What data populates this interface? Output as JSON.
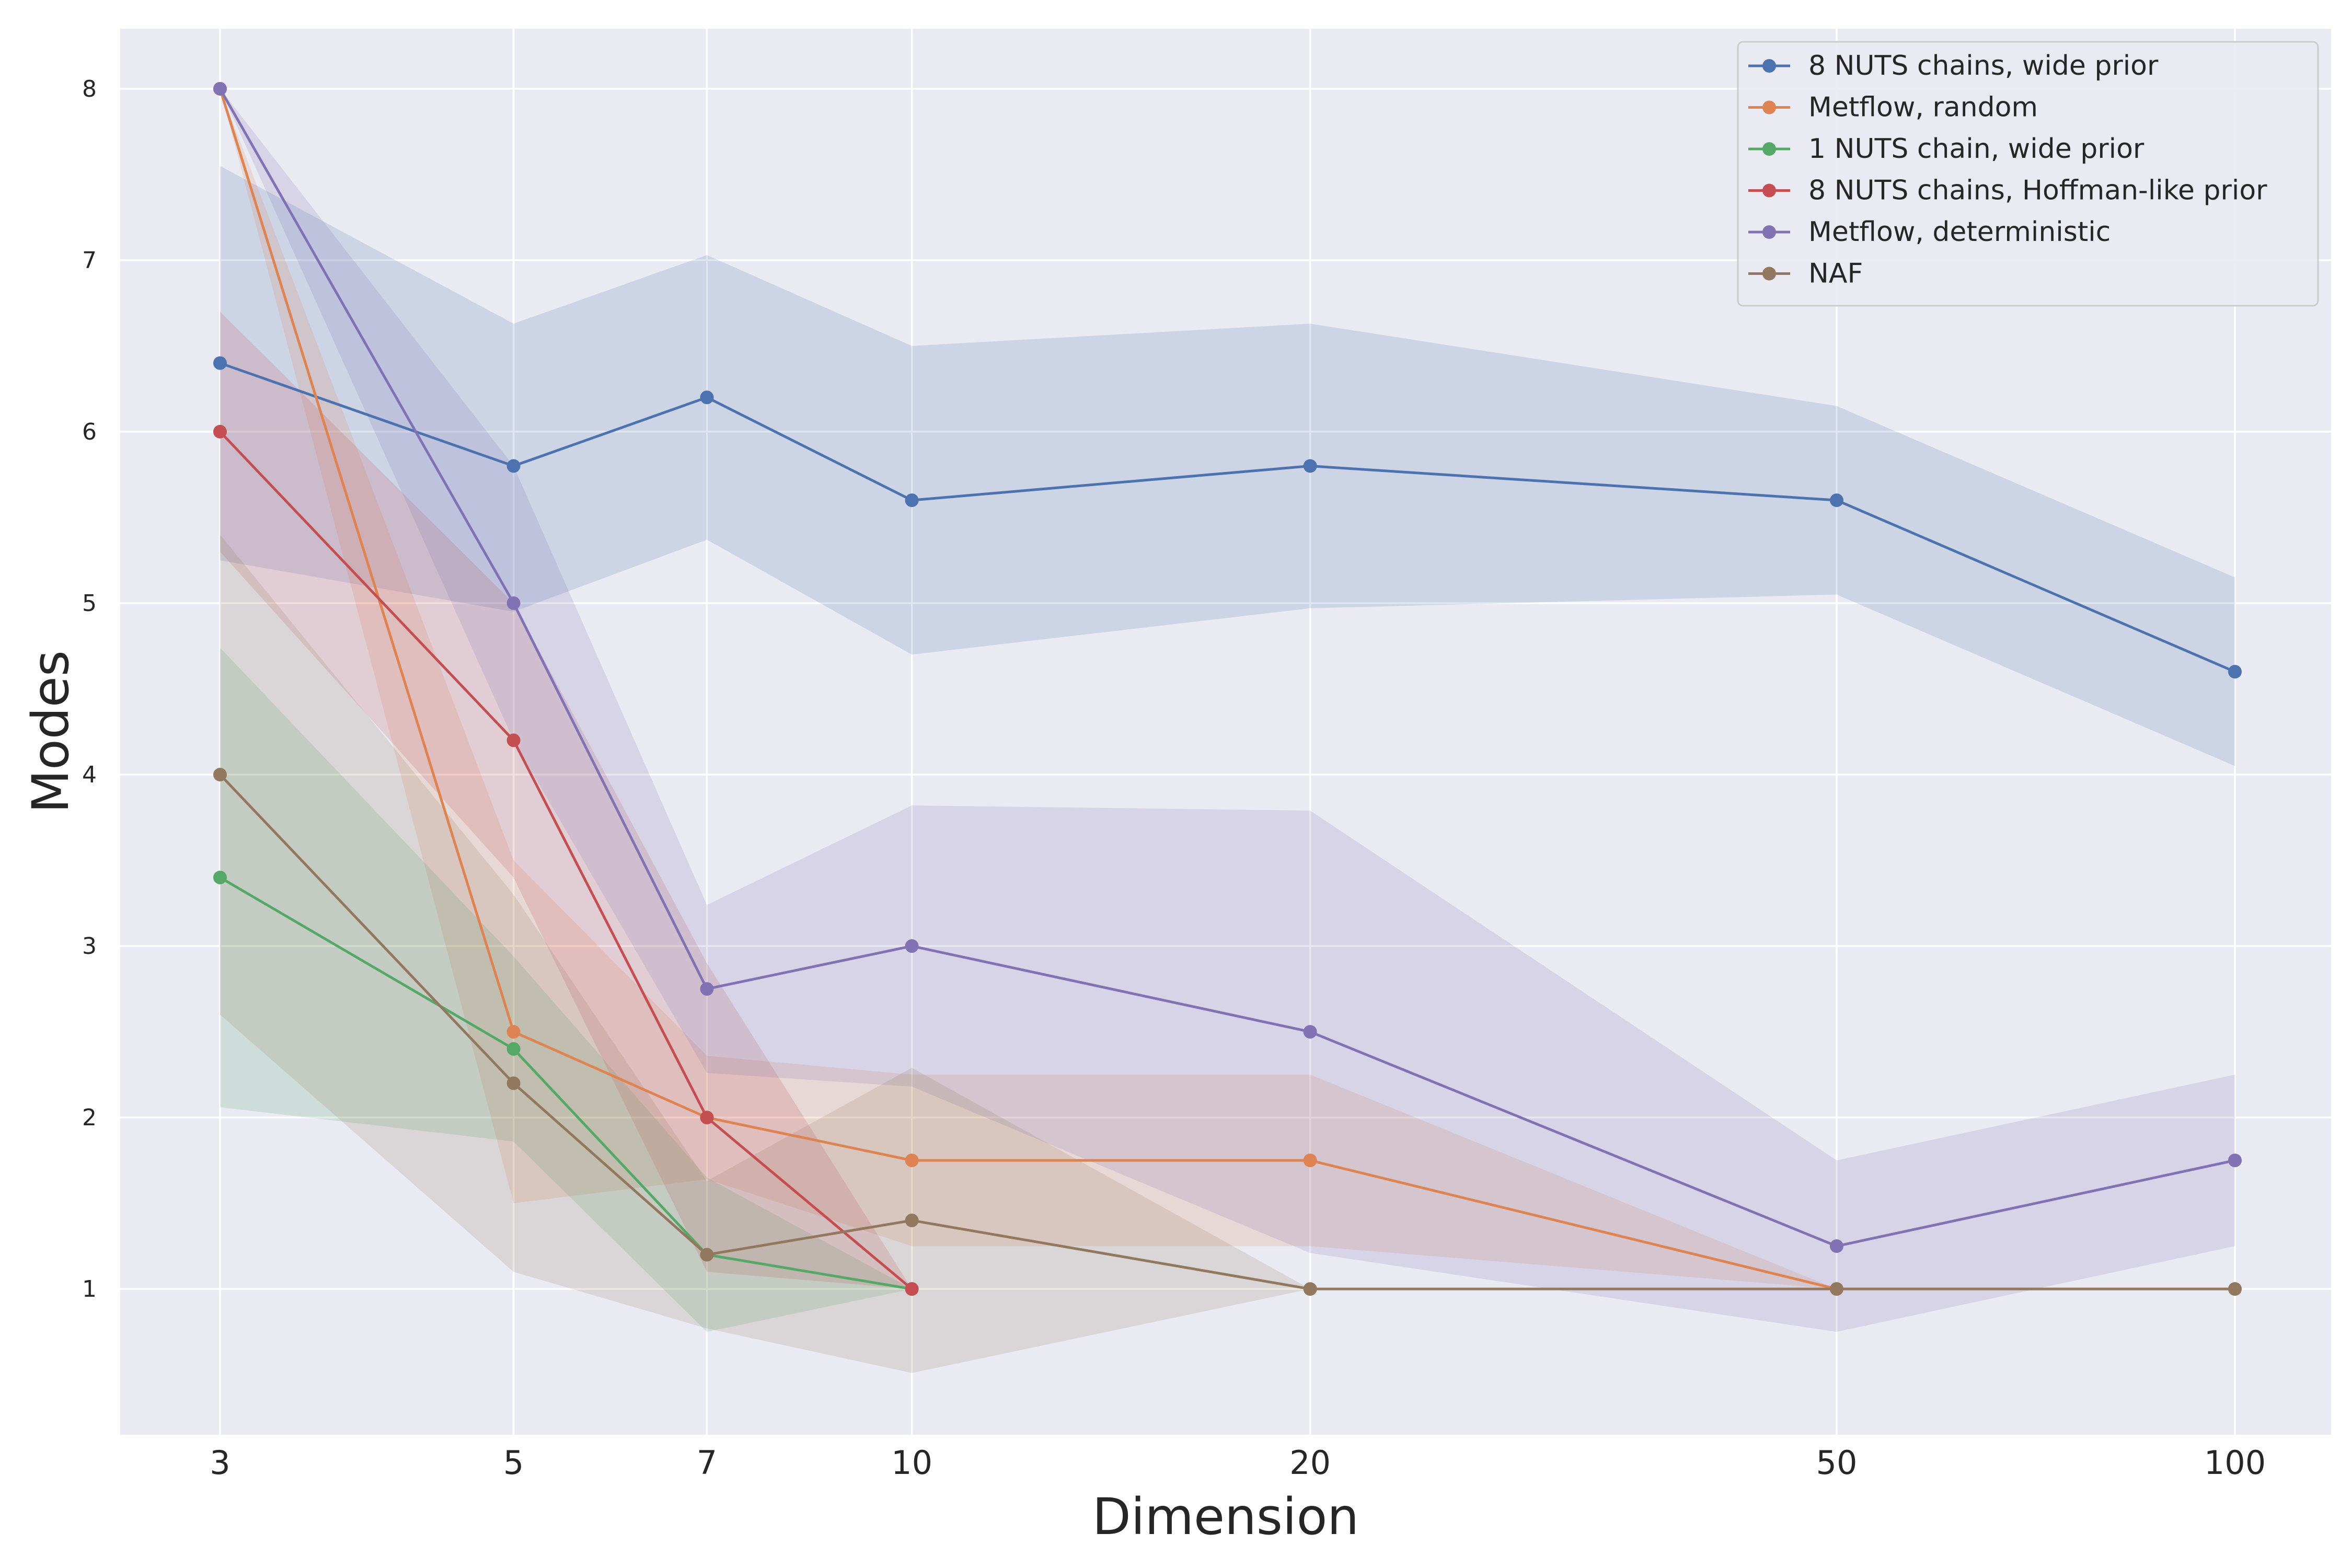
{
  "chart_data": {
    "type": "line",
    "xlabel": "Dimension",
    "ylabel": "Modes",
    "x": [
      3,
      5,
      7,
      10,
      20,
      50,
      100
    ],
    "x_scale": "log",
    "x_ticks": [
      3,
      5,
      7,
      10,
      20,
      50,
      100
    ],
    "y_ticks": [
      1,
      2,
      3,
      4,
      5,
      6,
      7,
      8
    ],
    "ylim": [
      0.15,
      8.35
    ],
    "grid": true,
    "legend_position": "top-right",
    "series": [
      {
        "name": "8 NUTS chains, wide prior",
        "color": "#4c72b0",
        "values": [
          6.4,
          5.8,
          6.2,
          5.6,
          5.8,
          5.6,
          4.6
        ],
        "lower": [
          5.25,
          4.95,
          5.37,
          4.7,
          4.97,
          5.05,
          4.05
        ],
        "upper": [
          7.55,
          6.63,
          7.03,
          6.5,
          6.63,
          6.15,
          5.15
        ]
      },
      {
        "name": "Metflow, random",
        "color": "#dd8452",
        "values": [
          8,
          2.5,
          2,
          1.75,
          1.75,
          1,
          1
        ],
        "lower": [
          8,
          1.5,
          1.64,
          1.25,
          1.25,
          1,
          1
        ],
        "upper": [
          8,
          3.5,
          2.36,
          2.25,
          2.25,
          1,
          1
        ]
      },
      {
        "name": "1 NUTS chain, wide prior",
        "color": "#55a868",
        "values": [
          3.4,
          2.4,
          1.2,
          1,
          null,
          null,
          null
        ],
        "lower": [
          2.06,
          1.86,
          0.75,
          1,
          null,
          null,
          null
        ],
        "upper": [
          4.74,
          2.94,
          1.65,
          1,
          null,
          null,
          null
        ]
      },
      {
        "name": "8 NUTS chains, Hoffman-like prior",
        "color": "#c44e52",
        "values": [
          6,
          4.2,
          2,
          1,
          null,
          null,
          null
        ],
        "lower": [
          5.3,
          3.4,
          1.1,
          1,
          null,
          null,
          null
        ],
        "upper": [
          6.7,
          5.0,
          2.9,
          1,
          null,
          null,
          null
        ]
      },
      {
        "name": "Metflow, deterministic",
        "color": "#8172b3",
        "values": [
          8,
          5,
          2.75,
          3,
          2.5,
          1.25,
          1.75
        ],
        "lower": [
          8,
          4.2,
          2.26,
          2.18,
          1.21,
          0.75,
          1.25
        ],
        "upper": [
          8,
          5.8,
          3.24,
          3.82,
          3.79,
          1.75,
          2.25
        ]
      },
      {
        "name": "NAF",
        "color": "#937860",
        "values": [
          4,
          2.2,
          1.2,
          1.4,
          1,
          1,
          1
        ],
        "lower": [
          2.6,
          1.1,
          0.77,
          0.51,
          1,
          1,
          1
        ],
        "upper": [
          5.4,
          3.3,
          1.63,
          2.29,
          1,
          1,
          1
        ]
      }
    ]
  }
}
